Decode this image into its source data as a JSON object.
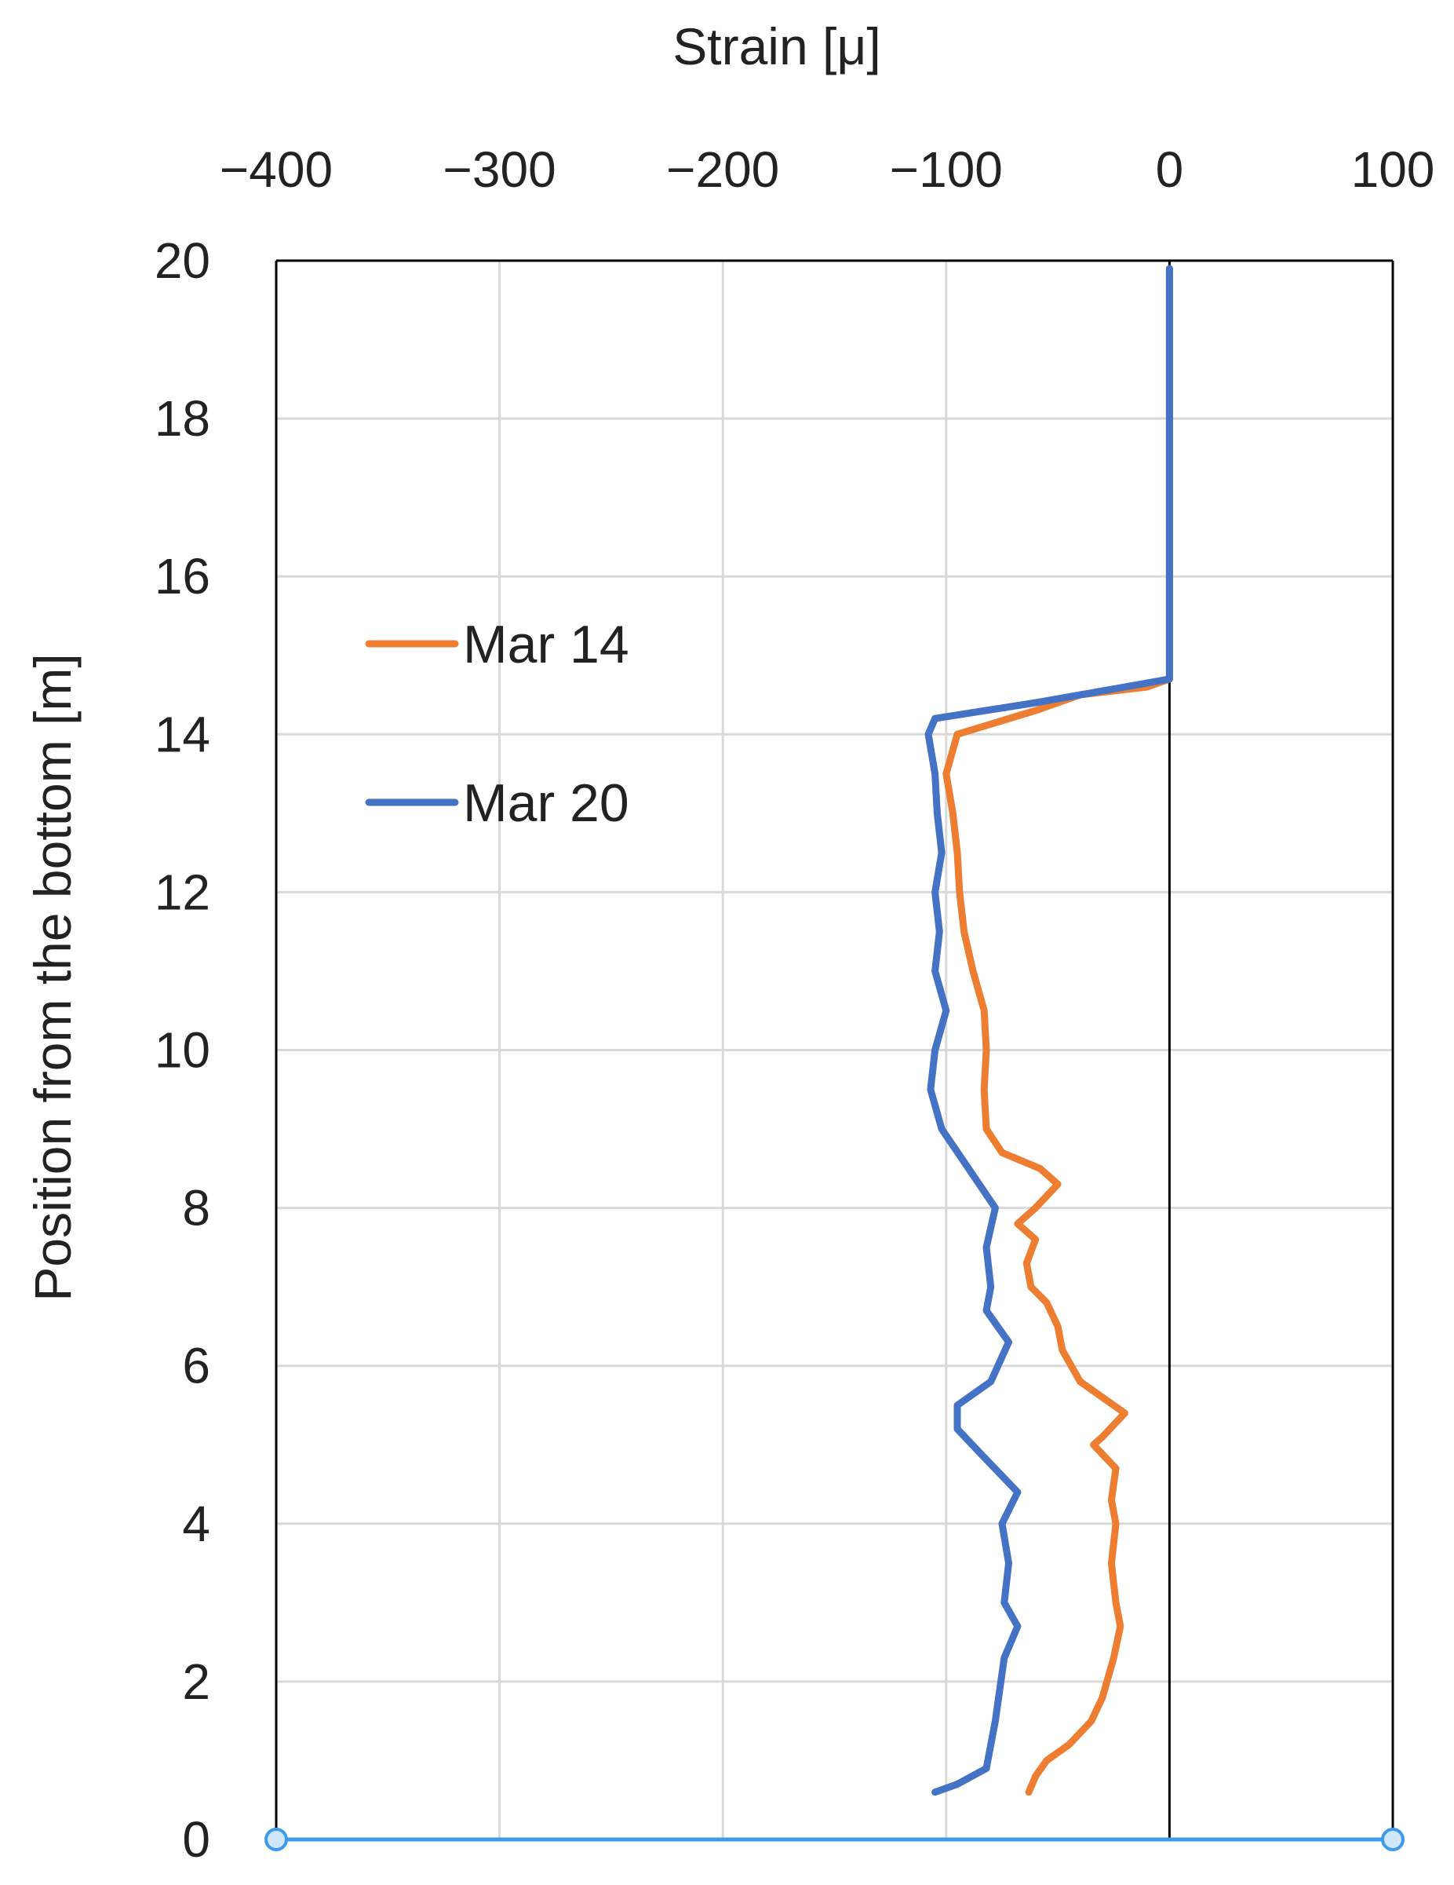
{
  "chart_data": {
    "type": "line",
    "title": "",
    "xlabel": "Strain [μ]",
    "ylabel": "Position from the bottom [m]",
    "xlim": [
      -400,
      100
    ],
    "ylim": [
      0,
      20
    ],
    "x_ticks": [
      "−400",
      "−300",
      "−200",
      "−100",
      "0",
      "100"
    ],
    "x_tick_values": [
      -400,
      -300,
      -200,
      -100,
      0,
      100
    ],
    "y_ticks": [
      "0",
      "2",
      "4",
      "6",
      "8",
      "10",
      "12",
      "14",
      "16",
      "18",
      "20"
    ],
    "y_tick_values": [
      0,
      2,
      4,
      6,
      8,
      10,
      12,
      14,
      16,
      18,
      20
    ],
    "x_axis_position": "top",
    "grid": true,
    "legend_position": "upper-left",
    "series": [
      {
        "name": "Mar 14",
        "color": "#ED7D31",
        "points": [
          [
            -63,
            0.6
          ],
          [
            -60,
            0.8
          ],
          [
            -55,
            1.0
          ],
          [
            -45,
            1.2
          ],
          [
            -35,
            1.5
          ],
          [
            -30,
            1.8
          ],
          [
            -28,
            2.0
          ],
          [
            -25,
            2.3
          ],
          [
            -22,
            2.7
          ],
          [
            -24,
            3.0
          ],
          [
            -26,
            3.5
          ],
          [
            -24,
            4.0
          ],
          [
            -26,
            4.3
          ],
          [
            -24,
            4.7
          ],
          [
            -34,
            5.0
          ],
          [
            -30,
            5.1
          ],
          [
            -20,
            5.4
          ],
          [
            -30,
            5.6
          ],
          [
            -40,
            5.8
          ],
          [
            -48,
            6.2
          ],
          [
            -50,
            6.5
          ],
          [
            -55,
            6.8
          ],
          [
            -62,
            7.0
          ],
          [
            -64,
            7.3
          ],
          [
            -60,
            7.6
          ],
          [
            -68,
            7.8
          ],
          [
            -60,
            8.0
          ],
          [
            -50,
            8.3
          ],
          [
            -58,
            8.5
          ],
          [
            -75,
            8.7
          ],
          [
            -82,
            9.0
          ],
          [
            -83,
            9.5
          ],
          [
            -82,
            10.0
          ],
          [
            -83,
            10.5
          ],
          [
            -88,
            11.0
          ],
          [
            -92,
            11.5
          ],
          [
            -94,
            12.0
          ],
          [
            -95,
            12.5
          ],
          [
            -97,
            13.0
          ],
          [
            -100,
            13.5
          ],
          [
            -95,
            14.0
          ],
          [
            -60,
            14.3
          ],
          [
            -40,
            14.5
          ],
          [
            -10,
            14.6
          ],
          [
            0,
            14.7
          ],
          [
            0,
            16.0
          ],
          [
            0,
            18.0
          ],
          [
            0,
            19.9
          ]
        ]
      },
      {
        "name": "Mar 20",
        "color": "#4472C4",
        "points": [
          [
            -105,
            0.6
          ],
          [
            -95,
            0.7
          ],
          [
            -82,
            0.9
          ],
          [
            -80,
            1.2
          ],
          [
            -78,
            1.5
          ],
          [
            -76,
            1.9
          ],
          [
            -74,
            2.3
          ],
          [
            -68,
            2.7
          ],
          [
            -74,
            3.0
          ],
          [
            -72,
            3.5
          ],
          [
            -75,
            4.0
          ],
          [
            -68,
            4.4
          ],
          [
            -85,
            4.9
          ],
          [
            -95,
            5.2
          ],
          [
            -95,
            5.5
          ],
          [
            -80,
            5.8
          ],
          [
            -72,
            6.3
          ],
          [
            -82,
            6.7
          ],
          [
            -80,
            7.0
          ],
          [
            -82,
            7.5
          ],
          [
            -78,
            8.0
          ],
          [
            -90,
            8.5
          ],
          [
            -102,
            9.0
          ],
          [
            -107,
            9.5
          ],
          [
            -105,
            10.0
          ],
          [
            -100,
            10.5
          ],
          [
            -105,
            11.0
          ],
          [
            -103,
            11.5
          ],
          [
            -105,
            12.0
          ],
          [
            -102,
            12.5
          ],
          [
            -104,
            13.0
          ],
          [
            -105,
            13.5
          ],
          [
            -108,
            14.0
          ],
          [
            -105,
            14.2
          ],
          [
            -60,
            14.4
          ],
          [
            -20,
            14.6
          ],
          [
            0,
            14.7
          ],
          [
            0,
            16.0
          ],
          [
            0,
            18.0
          ],
          [
            0,
            19.9
          ]
        ]
      }
    ]
  }
}
